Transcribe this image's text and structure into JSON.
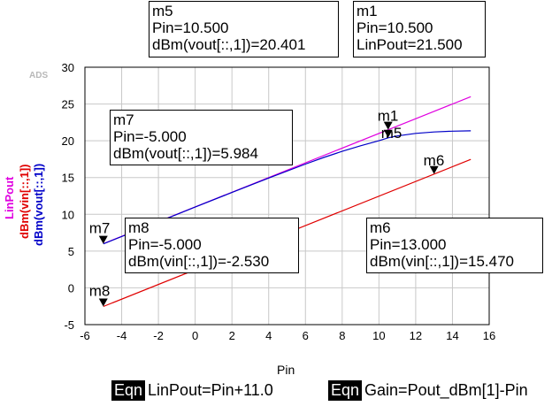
{
  "chart_data": {
    "type": "line",
    "watermark": "ADS",
    "xlabel": "Pin",
    "ylabels": [
      {
        "text": "LinPout",
        "color": "#e000e0"
      },
      {
        "text": "dBm(vin[::,1])",
        "color": "#e00000"
      },
      {
        "text": "dBm(vout[::,1])",
        "color": "#0000c8"
      }
    ],
    "xlim": [
      -6,
      16
    ],
    "ylim": [
      -5,
      30
    ],
    "xticks": [
      -6,
      -4,
      -2,
      0,
      2,
      4,
      6,
      8,
      10,
      12,
      14,
      16
    ],
    "yticks": [
      -5,
      0,
      5,
      10,
      15,
      20,
      25,
      30
    ],
    "grid": true,
    "series": [
      {
        "name": "LinPout",
        "color": "#e000e0",
        "x": [
          -5,
          15
        ],
        "y": [
          6.0,
          26.0
        ]
      },
      {
        "name": "dBm(vin[::,1])",
        "color": "#e00000",
        "x": [
          -5,
          15
        ],
        "y": [
          -2.53,
          17.47
        ]
      },
      {
        "name": "dBm(vout[::,1])",
        "color": "#0000c8",
        "x": [
          -5,
          -2,
          0,
          2,
          4,
          6,
          7,
          8,
          9,
          10,
          10.5,
          11,
          12,
          13,
          14,
          15
        ],
        "y": [
          5.984,
          8.98,
          10.98,
          12.97,
          14.93,
          16.83,
          17.73,
          18.56,
          19.32,
          20.0,
          20.4,
          20.66,
          21.0,
          21.2,
          21.3,
          21.35
        ]
      }
    ],
    "markers": [
      {
        "name": "m1",
        "x": 10.5,
        "y": 21.5,
        "lines": [
          "m1",
          "Pin=10.500",
          "LinPout=21.500"
        ]
      },
      {
        "name": "m5",
        "x": 10.5,
        "y": 20.401,
        "lines": [
          "m5",
          "Pin=10.500",
          "dBm(vout[::,1])=20.401"
        ]
      },
      {
        "name": "m6",
        "x": 13.0,
        "y": 15.47,
        "lines": [
          "m6",
          "Pin=13.000",
          "dBm(vin[::,1])=15.470"
        ]
      },
      {
        "name": "m7",
        "x": -5.0,
        "y": 5.984,
        "lines": [
          "m7",
          "Pin=-5.000",
          "dBm(vout[::,1])=5.984"
        ]
      },
      {
        "name": "m8",
        "x": -5.0,
        "y": -2.53,
        "lines": [
          "m8",
          "Pin=-5.000",
          "dBm(vin[::,1])=-2.530"
        ]
      }
    ],
    "equations": [
      {
        "tag": "Eqn",
        "text": "LinPout=Pin+11.0"
      },
      {
        "tag": "Eqn",
        "text": "Gain=Pout_dBm[1]-Pin"
      }
    ]
  }
}
